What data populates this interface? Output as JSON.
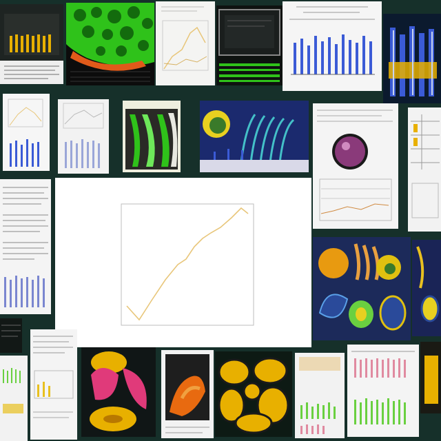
{
  "collage": {
    "main_chart": {
      "title": "",
      "xlabel": "",
      "ylabel": "",
      "ytick_labels": [
        "",
        "",
        "",
        "",
        "",
        ""
      ],
      "xtick_labels": [
        "",
        "",
        "",
        "",
        "",
        "",
        "",
        "",
        "",
        "",
        "",
        "",
        "",
        ""
      ]
    }
  },
  "colors": {
    "background": "#16302a",
    "line": "#e8c67a",
    "bar_blue": "#3b5bd6",
    "bar_yellow": "#e8b000",
    "leaf_green": "#2fc21a"
  }
}
